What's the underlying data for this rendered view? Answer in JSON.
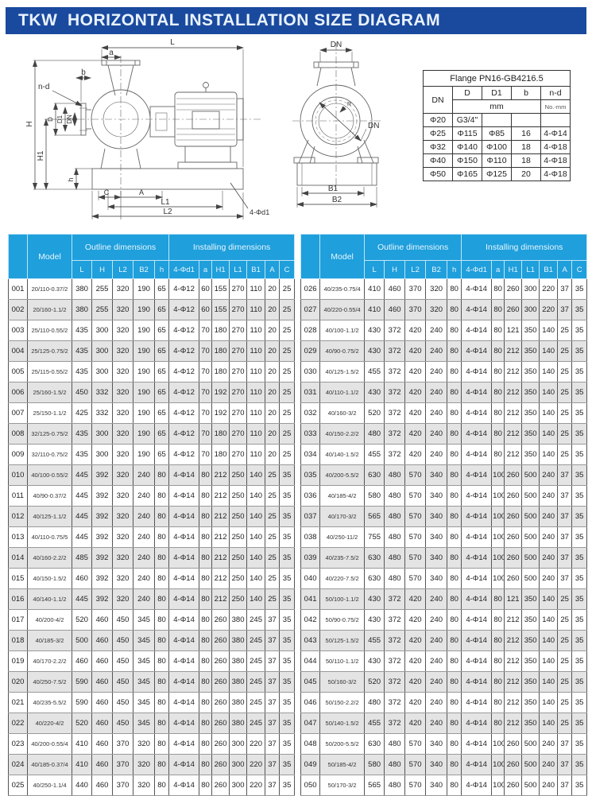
{
  "title": "TKW  HORIZONTAL INSTALLATION SIZE DIAGRAM",
  "colors": {
    "title_bar_bg": "#1a4a9e",
    "table_header_bg": "#1f9fdc",
    "row_alt_bg": "#e4e4e4"
  },
  "side_view": {
    "labels": {
      "L": "L",
      "a": "a",
      "b": "b",
      "nd": "n-d",
      "H": "H",
      "D": "D",
      "D1": "D1",
      "DN": "DN",
      "H1": "H1",
      "h": "h",
      "C": "C",
      "A": "A",
      "L1": "L1",
      "L2": "L2",
      "d1": "4-Φd1"
    }
  },
  "front_view": {
    "labels": {
      "DN_top": "DN",
      "DN_inner": "DN",
      "R": "R",
      "B1": "B1",
      "B2": "B2"
    }
  },
  "flange_table": {
    "title": "Flange PN16-GB4216.5",
    "col_headers": [
      "DN",
      "D",
      "D1",
      "b",
      "n-d"
    ],
    "unit_mm": "mm",
    "unit_nomm": "No.-mm",
    "rows": [
      [
        "Φ20",
        "G3/4\"",
        "",
        "",
        ""
      ],
      [
        "Φ25",
        "Φ115",
        "Φ85",
        "16",
        "4-Φ14"
      ],
      [
        "Φ32",
        "Φ140",
        "Φ100",
        "18",
        "4-Φ18"
      ],
      [
        "Φ40",
        "Φ150",
        "Φ110",
        "18",
        "4-Φ18"
      ],
      [
        "Φ50",
        "Φ165",
        "Φ125",
        "20",
        "4-Φ18"
      ]
    ]
  },
  "main_table": {
    "model_header": "Model",
    "outline_header": "Outline dimensions",
    "installing_header": "Installing dimensions",
    "outline_cols": [
      "L",
      "H",
      "L2",
      "B2",
      "h"
    ],
    "installing_cols": [
      "4-Φd1",
      "a",
      "H1",
      "L1",
      "B1",
      "A",
      "C"
    ],
    "left_rows": [
      {
        "no": "001",
        "model": "20/110-0.37/2",
        "values": [
          "380",
          "255",
          "320",
          "190",
          "65",
          "4-Φ12",
          "60",
          "155",
          "270",
          "110",
          "20",
          "25"
        ]
      },
      {
        "no": "002",
        "model": "20/160-1.1/2",
        "values": [
          "380",
          "255",
          "320",
          "190",
          "65",
          "4-Φ12",
          "60",
          "155",
          "270",
          "110",
          "20",
          "25"
        ]
      },
      {
        "no": "003",
        "model": "25/110-0.55/2",
        "values": [
          "435",
          "300",
          "320",
          "190",
          "65",
          "4-Φ12",
          "70",
          "180",
          "270",
          "110",
          "20",
          "25"
        ]
      },
      {
        "no": "004",
        "model": "25/125-0.75/2",
        "values": [
          "435",
          "300",
          "320",
          "190",
          "65",
          "4-Φ12",
          "70",
          "180",
          "270",
          "110",
          "20",
          "25"
        ]
      },
      {
        "no": "005",
        "model": "25/115-0.55/2",
        "values": [
          "435",
          "300",
          "320",
          "190",
          "65",
          "4-Φ12",
          "70",
          "180",
          "270",
          "110",
          "20",
          "25"
        ]
      },
      {
        "no": "006",
        "model": "25/160-1.5/2",
        "values": [
          "450",
          "332",
          "320",
          "190",
          "65",
          "4-Φ12",
          "70",
          "192",
          "270",
          "110",
          "20",
          "25"
        ]
      },
      {
        "no": "007",
        "model": "25/150-1.1/2",
        "values": [
          "425",
          "332",
          "320",
          "190",
          "65",
          "4-Φ12",
          "70",
          "192",
          "270",
          "110",
          "20",
          "25"
        ]
      },
      {
        "no": "008",
        "model": "32/125-0.75/2",
        "values": [
          "435",
          "300",
          "320",
          "190",
          "65",
          "4-Φ12",
          "70",
          "180",
          "270",
          "110",
          "20",
          "25"
        ]
      },
      {
        "no": "009",
        "model": "32/110-0.75/2",
        "values": [
          "435",
          "300",
          "320",
          "190",
          "65",
          "4-Φ12",
          "70",
          "180",
          "270",
          "110",
          "20",
          "25"
        ]
      },
      {
        "no": "010",
        "model": "40/100-0.55/2",
        "values": [
          "445",
          "392",
          "320",
          "240",
          "80",
          "4-Φ14",
          "80",
          "212",
          "250",
          "140",
          "25",
          "35"
        ]
      },
      {
        "no": "011",
        "model": "40/90-0.37/2",
        "values": [
          "445",
          "392",
          "320",
          "240",
          "80",
          "4-Φ14",
          "80",
          "212",
          "250",
          "140",
          "25",
          "35"
        ]
      },
      {
        "no": "012",
        "model": "40/125-1.1/2",
        "values": [
          "445",
          "392",
          "320",
          "240",
          "80",
          "4-Φ14",
          "80",
          "212",
          "250",
          "140",
          "25",
          "35"
        ]
      },
      {
        "no": "013",
        "model": "40/110-0.75/5",
        "values": [
          "445",
          "392",
          "320",
          "240",
          "80",
          "4-Φ14",
          "80",
          "212",
          "250",
          "140",
          "25",
          "35"
        ]
      },
      {
        "no": "014",
        "model": "40/160-2.2/2",
        "values": [
          "485",
          "392",
          "320",
          "240",
          "80",
          "4-Φ14",
          "80",
          "212",
          "250",
          "140",
          "25",
          "35"
        ]
      },
      {
        "no": "015",
        "model": "40/150-1.5/2",
        "values": [
          "460",
          "392",
          "320",
          "240",
          "80",
          "4-Φ14",
          "80",
          "212",
          "250",
          "140",
          "25",
          "35"
        ]
      },
      {
        "no": "016",
        "model": "40/140-1.1/2",
        "values": [
          "445",
          "392",
          "320",
          "240",
          "80",
          "4-Φ14",
          "80",
          "212",
          "250",
          "140",
          "25",
          "35"
        ]
      },
      {
        "no": "017",
        "model": "40/200-4/2",
        "values": [
          "520",
          "460",
          "450",
          "345",
          "80",
          "4-Φ14",
          "80",
          "260",
          "380",
          "245",
          "37",
          "35"
        ]
      },
      {
        "no": "018",
        "model": "40/185-3/2",
        "values": [
          "500",
          "460",
          "450",
          "345",
          "80",
          "4-Φ14",
          "80",
          "260",
          "380",
          "245",
          "37",
          "35"
        ]
      },
      {
        "no": "019",
        "model": "40/170-2.2/2",
        "values": [
          "460",
          "460",
          "450",
          "345",
          "80",
          "4-Φ14",
          "80",
          "260",
          "380",
          "245",
          "37",
          "35"
        ]
      },
      {
        "no": "020",
        "model": "40/250-7.5/2",
        "values": [
          "590",
          "460",
          "450",
          "345",
          "80",
          "4-Φ14",
          "80",
          "260",
          "380",
          "245",
          "37",
          "35"
        ]
      },
      {
        "no": "021",
        "model": "40/235-5.5/2",
        "values": [
          "590",
          "460",
          "450",
          "345",
          "80",
          "4-Φ14",
          "80",
          "260",
          "380",
          "245",
          "37",
          "35"
        ]
      },
      {
        "no": "022",
        "model": "40/220-4/2",
        "values": [
          "520",
          "460",
          "450",
          "345",
          "80",
          "4-Φ14",
          "80",
          "260",
          "380",
          "245",
          "37",
          "35"
        ]
      },
      {
        "no": "023",
        "model": "40/200-0.55/4",
        "values": [
          "410",
          "460",
          "370",
          "320",
          "80",
          "4-Φ14",
          "80",
          "260",
          "300",
          "220",
          "37",
          "35"
        ]
      },
      {
        "no": "024",
        "model": "40/185-0.37/4",
        "values": [
          "410",
          "460",
          "370",
          "320",
          "80",
          "4-Φ14",
          "80",
          "260",
          "300",
          "220",
          "37",
          "35"
        ]
      },
      {
        "no": "025",
        "model": "40/250-1.1/4",
        "values": [
          "440",
          "460",
          "370",
          "320",
          "80",
          "4-Φ14",
          "80",
          "260",
          "300",
          "220",
          "37",
          "35"
        ]
      }
    ],
    "right_rows": [
      {
        "no": "026",
        "model": "40/235-0.75/4",
        "values": [
          "410",
          "460",
          "370",
          "320",
          "80",
          "4-Φ14",
          "80",
          "260",
          "300",
          "220",
          "37",
          "35"
        ]
      },
      {
        "no": "027",
        "model": "40/220-0.55/4",
        "values": [
          "410",
          "460",
          "370",
          "320",
          "80",
          "4-Φ14",
          "80",
          "260",
          "300",
          "220",
          "37",
          "35"
        ]
      },
      {
        "no": "028",
        "model": "40/100-1.1/2",
        "values": [
          "430",
          "372",
          "420",
          "240",
          "80",
          "4-Φ14",
          "80",
          "121",
          "350",
          "140",
          "25",
          "35"
        ]
      },
      {
        "no": "029",
        "model": "40/90-0.75/2",
        "values": [
          "430",
          "372",
          "420",
          "240",
          "80",
          "4-Φ14",
          "80",
          "212",
          "350",
          "140",
          "25",
          "35"
        ]
      },
      {
        "no": "030",
        "model": "40/125-1.5/2",
        "values": [
          "455",
          "372",
          "420",
          "240",
          "80",
          "4-Φ14",
          "80",
          "212",
          "350",
          "140",
          "25",
          "35"
        ]
      },
      {
        "no": "031",
        "model": "40/110-1.1/2",
        "values": [
          "430",
          "372",
          "420",
          "240",
          "80",
          "4-Φ14",
          "80",
          "212",
          "350",
          "140",
          "25",
          "35"
        ]
      },
      {
        "no": "032",
        "model": "40/160-3/2",
        "values": [
          "520",
          "372",
          "420",
          "240",
          "80",
          "4-Φ14",
          "80",
          "212",
          "350",
          "140",
          "25",
          "35"
        ]
      },
      {
        "no": "033",
        "model": "40/150-2.2/2",
        "values": [
          "480",
          "372",
          "420",
          "240",
          "80",
          "4-Φ14",
          "80",
          "212",
          "350",
          "140",
          "25",
          "35"
        ]
      },
      {
        "no": "034",
        "model": "40/140-1.5/2",
        "values": [
          "455",
          "372",
          "420",
          "240",
          "80",
          "4-Φ14",
          "80",
          "212",
          "350",
          "140",
          "25",
          "35"
        ]
      },
      {
        "no": "035",
        "model": "40/200-5.5/2",
        "values": [
          "630",
          "480",
          "570",
          "340",
          "80",
          "4-Φ14",
          "100",
          "260",
          "500",
          "240",
          "37",
          "35"
        ]
      },
      {
        "no": "036",
        "model": "40/185-4/2",
        "values": [
          "580",
          "480",
          "570",
          "340",
          "80",
          "4-Φ14",
          "100",
          "260",
          "500",
          "240",
          "37",
          "35"
        ]
      },
      {
        "no": "037",
        "model": "40/170-3/2",
        "values": [
          "565",
          "480",
          "570",
          "340",
          "80",
          "4-Φ14",
          "100",
          "260",
          "500",
          "240",
          "37",
          "35"
        ]
      },
      {
        "no": "038",
        "model": "40/250-11/2",
        "values": [
          "755",
          "480",
          "570",
          "340",
          "80",
          "4-Φ14",
          "100",
          "260",
          "500",
          "240",
          "37",
          "35"
        ]
      },
      {
        "no": "039",
        "model": "40/235-7.5/2",
        "values": [
          "630",
          "480",
          "570",
          "340",
          "80",
          "4-Φ14",
          "100",
          "260",
          "500",
          "240",
          "37",
          "35"
        ]
      },
      {
        "no": "040",
        "model": "40/220-7.5/2",
        "values": [
          "630",
          "480",
          "570",
          "340",
          "80",
          "4-Φ14",
          "100",
          "260",
          "500",
          "240",
          "37",
          "35"
        ]
      },
      {
        "no": "041",
        "model": "50/100-1.1/2",
        "values": [
          "430",
          "372",
          "420",
          "240",
          "80",
          "4-Φ14",
          "80",
          "121",
          "350",
          "140",
          "25",
          "35"
        ]
      },
      {
        "no": "042",
        "model": "50/90-0.75/2",
        "values": [
          "430",
          "372",
          "420",
          "240",
          "80",
          "4-Φ14",
          "80",
          "212",
          "350",
          "140",
          "25",
          "35"
        ]
      },
      {
        "no": "043",
        "model": "50/125-1.5/2",
        "values": [
          "455",
          "372",
          "420",
          "240",
          "80",
          "4-Φ14",
          "80",
          "212",
          "350",
          "140",
          "25",
          "35"
        ]
      },
      {
        "no": "044",
        "model": "50/110-1.1/2",
        "values": [
          "430",
          "372",
          "420",
          "240",
          "80",
          "4-Φ14",
          "80",
          "212",
          "350",
          "140",
          "25",
          "35"
        ]
      },
      {
        "no": "045",
        "model": "50/160-3/2",
        "values": [
          "520",
          "372",
          "420",
          "240",
          "80",
          "4-Φ14",
          "80",
          "212",
          "350",
          "140",
          "25",
          "35"
        ]
      },
      {
        "no": "046",
        "model": "50/150-2.2/2",
        "values": [
          "480",
          "372",
          "420",
          "240",
          "80",
          "4-Φ14",
          "80",
          "212",
          "350",
          "140",
          "25",
          "35"
        ]
      },
      {
        "no": "047",
        "model": "50/140-1.5/2",
        "values": [
          "455",
          "372",
          "420",
          "240",
          "80",
          "4-Φ14",
          "80",
          "212",
          "350",
          "140",
          "25",
          "35"
        ]
      },
      {
        "no": "048",
        "model": "50/200-5.5/2",
        "values": [
          "630",
          "480",
          "570",
          "340",
          "80",
          "4-Φ14",
          "100",
          "260",
          "500",
          "240",
          "37",
          "35"
        ]
      },
      {
        "no": "049",
        "model": "50/185-4/2",
        "values": [
          "580",
          "480",
          "570",
          "340",
          "80",
          "4-Φ14",
          "100",
          "260",
          "500",
          "240",
          "37",
          "35"
        ]
      },
      {
        "no": "050",
        "model": "50/170-3/2",
        "values": [
          "565",
          "480",
          "570",
          "340",
          "80",
          "4-Φ14",
          "100",
          "260",
          "500",
          "240",
          "37",
          "35"
        ]
      }
    ]
  }
}
